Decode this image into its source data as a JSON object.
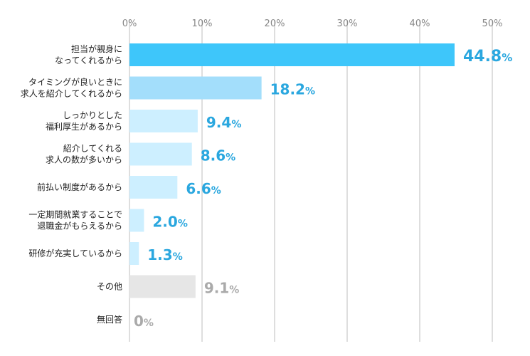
{
  "chart_data": {
    "type": "bar",
    "orientation": "horizontal",
    "xlim": [
      0,
      50
    ],
    "ticks": [
      0,
      10,
      20,
      30,
      40,
      50
    ],
    "tick_labels": [
      "0%",
      "10%",
      "20%",
      "30%",
      "40%",
      "50%"
    ],
    "grid": true,
    "categories": [
      [
        "担当が親身に",
        "なってくれるから"
      ],
      [
        "タイミングが良いときに",
        "求人を紹介してくれるから"
      ],
      [
        "しっかりとした",
        "福利厚生があるから"
      ],
      [
        "紹介してくれる",
        "求人の数が多いから"
      ],
      [
        "前払い制度があるから"
      ],
      [
        "一定期間就業することで",
        "退職金がもらえるから"
      ],
      [
        "研修が充実しているから"
      ],
      [
        "その他"
      ],
      [
        "無回答"
      ]
    ],
    "values": [
      44.8,
      18.2,
      9.4,
      8.6,
      6.6,
      2.0,
      1.3,
      9.1,
      0
    ],
    "value_labels": [
      "44.8",
      "18.2",
      "9.4",
      "8.6",
      "6.6",
      "2.0",
      "1.3",
      "9.1",
      "0"
    ],
    "value_unit": "%",
    "bar_colors": [
      "#3ec6fa",
      "#a3defb",
      "#cdefff",
      "#cdefff",
      "#cdefff",
      "#cdefff",
      "#cdefff",
      "#e6e6e6",
      "#e6e6e6"
    ],
    "label_colors": [
      "#2aa7df",
      "#2aa7df",
      "#2aa7df",
      "#2aa7df",
      "#2aa7df",
      "#2aa7df",
      "#2aa7df",
      "#aaaaaa",
      "#aaaaaa"
    ],
    "grid_color": "#d4d4d4"
  }
}
